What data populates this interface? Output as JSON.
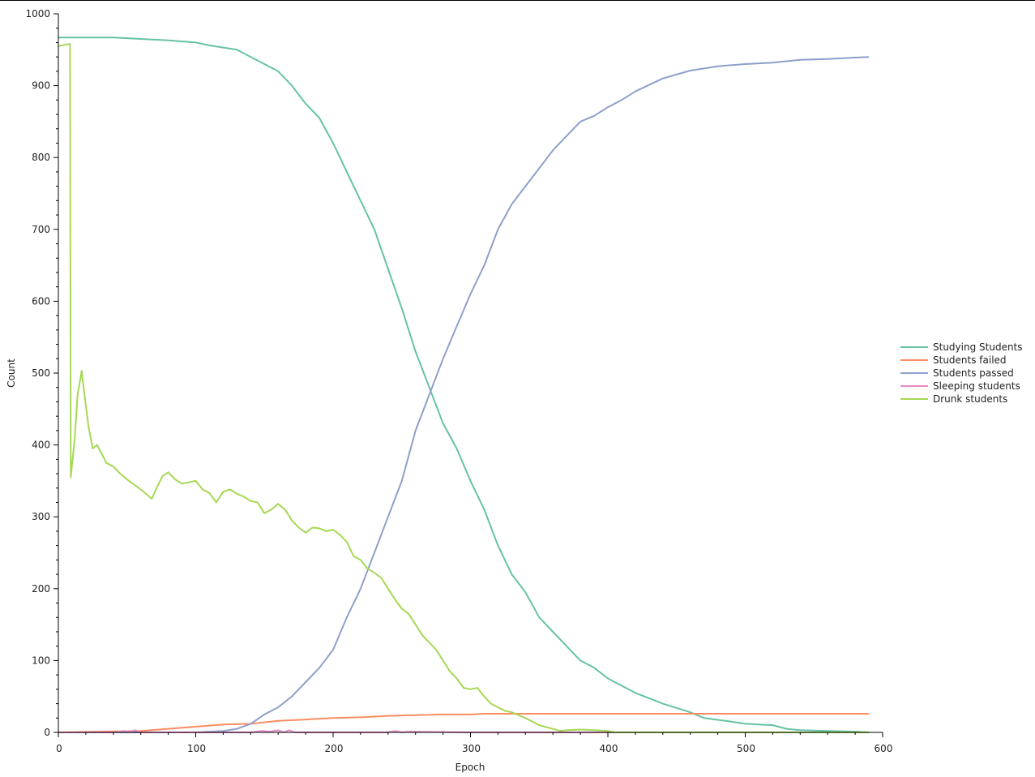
{
  "chart_data": {
    "type": "line",
    "title": "",
    "xlabel": "Epoch",
    "ylabel": "Count",
    "xlim": [
      0,
      600
    ],
    "ylim": [
      0,
      1000
    ],
    "x_ticks": [
      0,
      100,
      200,
      300,
      400,
      500,
      600
    ],
    "y_ticks": [
      0,
      100,
      200,
      300,
      400,
      500,
      600,
      700,
      800,
      900,
      1000
    ],
    "grid": false,
    "legend_position": "right",
    "series": [
      {
        "name": "Studying Students",
        "color": "#66c2a5",
        "x": [
          0,
          40,
          60,
          80,
          100,
          110,
          130,
          140,
          150,
          160,
          170,
          180,
          190,
          200,
          210,
          220,
          230,
          240,
          250,
          260,
          270,
          280,
          290,
          300,
          310,
          320,
          330,
          340,
          350,
          360,
          370,
          380,
          390,
          400,
          420,
          440,
          460,
          470,
          490,
          500,
          520,
          530,
          540,
          560,
          580,
          590
        ],
        "y": [
          967,
          967,
          965,
          963,
          960,
          956,
          950,
          940,
          930,
          920,
          900,
          875,
          855,
          820,
          780,
          740,
          700,
          645,
          590,
          530,
          480,
          430,
          395,
          350,
          310,
          260,
          220,
          195,
          160,
          140,
          120,
          100,
          90,
          75,
          55,
          40,
          28,
          20,
          15,
          12,
          10,
          5,
          3,
          2,
          1,
          0
        ]
      },
      {
        "name": "Students failed",
        "color": "#fc8d62",
        "x": [
          0,
          60,
          80,
          100,
          120,
          140,
          160,
          180,
          200,
          220,
          240,
          260,
          280,
          300,
          310,
          340,
          400,
          500,
          590
        ],
        "y": [
          0,
          2,
          5,
          8,
          11,
          12,
          16,
          18,
          20,
          21,
          23,
          24,
          25,
          25,
          26,
          26,
          26,
          26,
          26
        ]
      },
      {
        "name": "Students passed",
        "color": "#8da0cb",
        "x": [
          0,
          100,
          120,
          130,
          140,
          150,
          160,
          170,
          180,
          190,
          200,
          210,
          220,
          230,
          240,
          250,
          260,
          270,
          280,
          290,
          300,
          310,
          320,
          330,
          340,
          350,
          360,
          370,
          380,
          390,
          400,
          410,
          420,
          440,
          460,
          480,
          500,
          520,
          540,
          560,
          580,
          590
        ],
        "y": [
          0,
          0,
          2,
          5,
          12,
          25,
          35,
          50,
          70,
          90,
          115,
          160,
          200,
          250,
          300,
          350,
          420,
          470,
          520,
          565,
          610,
          650,
          700,
          735,
          760,
          785,
          810,
          830,
          850,
          858,
          870,
          880,
          892,
          910,
          921,
          927,
          930,
          932,
          936,
          937,
          939,
          940
        ]
      },
      {
        "name": "Sleeping students",
        "color": "#e78ac3",
        "x": [
          0,
          40,
          48,
          52,
          56,
          60,
          100,
          140,
          148,
          154,
          160,
          164,
          168,
          172,
          200,
          240,
          245,
          250,
          255,
          300,
          590
        ],
        "y": [
          0,
          0,
          2,
          1,
          3,
          0,
          0,
          0,
          2,
          1,
          3,
          0,
          3,
          0,
          0,
          0,
          2,
          0,
          1,
          0,
          0
        ]
      },
      {
        "name": "Drunk students",
        "color": "#a6d854",
        "x": [
          0,
          8,
          8.5,
          9,
          12,
          14,
          17,
          19,
          22,
          25,
          28,
          31,
          35,
          40,
          45,
          50,
          55,
          60,
          65,
          68,
          72,
          76,
          80,
          85,
          90,
          95,
          100,
          105,
          110,
          115,
          120,
          125,
          130,
          135,
          140,
          145,
          150,
          155,
          160,
          165,
          170,
          175,
          180,
          185,
          190,
          195,
          200,
          205,
          210,
          215,
          220,
          225,
          230,
          235,
          240,
          245,
          250,
          255,
          260,
          265,
          270,
          275,
          280,
          285,
          290,
          295,
          300,
          305,
          310,
          315,
          320,
          325,
          330,
          340,
          350,
          360,
          365,
          370,
          380,
          390,
          400,
          405,
          590
        ],
        "y": [
          955,
          958,
          958,
          355,
          410,
          470,
          503,
          470,
          425,
          395,
          400,
          390,
          375,
          370,
          360,
          352,
          345,
          338,
          330,
          325,
          342,
          357,
          362,
          352,
          346,
          348,
          350,
          338,
          333,
          320,
          335,
          338,
          332,
          328,
          322,
          320,
          305,
          310,
          318,
          310,
          295,
          285,
          278,
          285,
          284,
          280,
          282,
          275,
          265,
          245,
          240,
          228,
          222,
          215,
          200,
          185,
          172,
          165,
          150,
          135,
          125,
          115,
          100,
          85,
          75,
          62,
          60,
          62,
          50,
          40,
          35,
          30,
          28,
          20,
          10,
          5,
          2,
          3,
          4,
          3,
          2,
          0,
          0
        ]
      }
    ]
  }
}
